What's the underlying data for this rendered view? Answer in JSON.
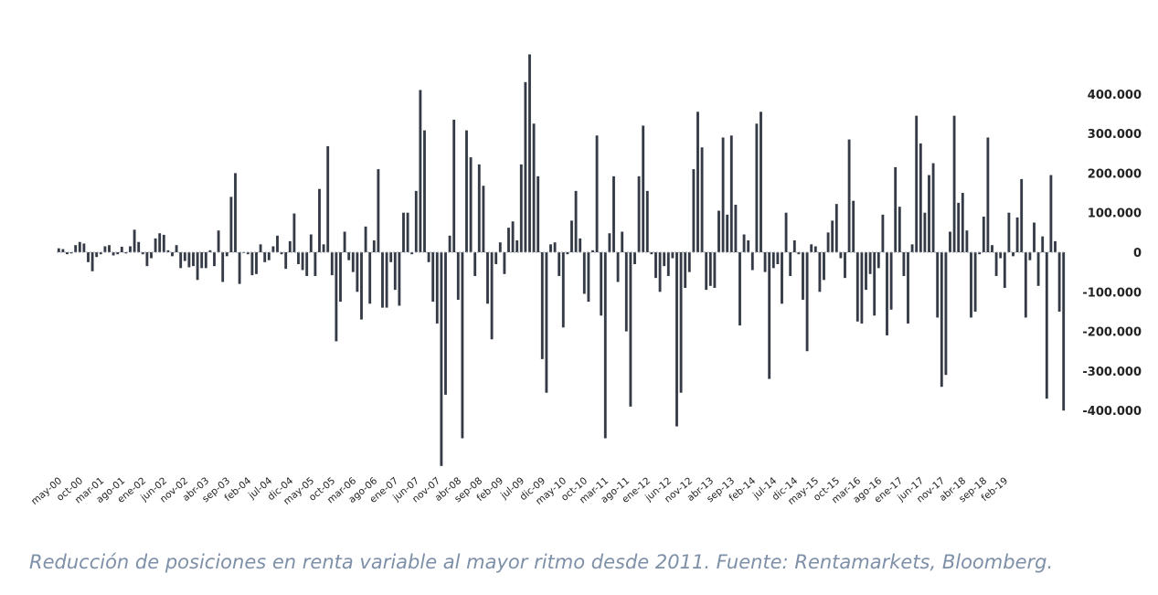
{
  "chart_data": {
    "type": "bar",
    "title": "",
    "xlabel": "",
    "ylabel": "",
    "ylim": [
      -550000,
      500000
    ],
    "yticks": [
      400000,
      300000,
      200000,
      100000,
      0,
      -100000,
      -200000,
      -300000,
      -400000
    ],
    "ytick_labels": [
      "400.000",
      "300.000",
      "200.000",
      "100.000",
      "0",
      "-100.000",
      "-200.000",
      "-300.000",
      "-400.000"
    ],
    "x_start": "2000-05",
    "x_tick_labels": [
      "may-00",
      "oct-00",
      "mar-01",
      "ago-01",
      "ene-02",
      "jun-02",
      "nov-02",
      "abr-03",
      "sep-03",
      "feb-04",
      "jul-04",
      "dic-04",
      "may-05",
      "oct-05",
      "mar-06",
      "ago-06",
      "ene-07",
      "jun-07",
      "nov-07",
      "abr-08",
      "sep-08",
      "feb-09",
      "jul-09",
      "dic-09",
      "may-10",
      "oct-10",
      "mar-11",
      "ago-11",
      "ene-12",
      "jun-12",
      "nov-12",
      "abr-13",
      "sep-13",
      "feb-14",
      "jul-14",
      "dic-14",
      "may-15",
      "oct-15",
      "mar-16",
      "ago-16",
      "ene-17",
      "jun-17",
      "nov-17",
      "abr-18",
      "sep-18",
      "feb-19"
    ],
    "bar_color": "#353b46",
    "values": [
      10000,
      8000,
      -5000,
      -3000,
      18000,
      26000,
      22000,
      -25000,
      -48000,
      -12000,
      -5000,
      15000,
      18000,
      -8000,
      -5000,
      14000,
      -3000,
      15000,
      57000,
      26000,
      -5000,
      -35000,
      -15000,
      35000,
      48000,
      44000,
      5000,
      -10000,
      18000,
      -40000,
      -22000,
      -38000,
      -35000,
      -70000,
      -40000,
      -40000,
      5000,
      -35000,
      55000,
      -75000,
      -10000,
      140000,
      200000,
      -80000,
      -2000,
      -5000,
      -58000,
      -55000,
      20000,
      -25000,
      -20000,
      15000,
      42000,
      -5000,
      -42000,
      28000,
      98000,
      -30000,
      -45000,
      -60000,
      45000,
      -60000,
      160000,
      20000,
      268000,
      -58000,
      -225000,
      -125000,
      52000,
      -20000,
      -50000,
      -100000,
      -170000,
      65000,
      -130000,
      30000,
      210000,
      -140000,
      -140000,
      -25000,
      -95000,
      -135000,
      100000,
      100000,
      -5000,
      155000,
      410000,
      308000,
      -25000,
      -125000,
      -180000,
      -540000,
      -360000,
      42000,
      335000,
      -120000,
      -470000,
      308000,
      240000,
      -60000,
      222000,
      168000,
      -130000,
      -220000,
      -30000,
      25000,
      -55000,
      62000,
      78000,
      30000,
      222000,
      430000,
      500000,
      325000,
      192000,
      -270000,
      -355000,
      20000,
      25000,
      -60000,
      -190000,
      -5000,
      80000,
      155000,
      35000,
      -105000,
      -125000,
      5000,
      295000,
      -160000,
      -470000,
      48000,
      192000,
      -75000,
      52000,
      -200000,
      -390000,
      -30000,
      192000,
      320000,
      155000,
      -5000,
      -65000,
      -100000,
      -35000,
      -60000,
      -15000,
      -440000,
      -355000,
      -90000,
      -50000,
      210000,
      355000,
      265000,
      -95000,
      -85000,
      -90000,
      105000,
      290000,
      95000,
      295000,
      120000,
      -185000,
      45000,
      30000,
      -45000,
      325000,
      355000,
      -50000,
      -320000,
      -40000,
      -30000,
      -130000,
      100000,
      -60000,
      30000,
      -5000,
      -120000,
      -250000,
      20000,
      15000,
      -100000,
      -70000,
      50000,
      80000,
      122000,
      -15000,
      -65000,
      285000,
      130000,
      -175000,
      -180000,
      -95000,
      -55000,
      -160000,
      -40000,
      95000,
      -210000,
      -145000,
      215000,
      115000,
      -60000,
      -180000,
      20000,
      345000,
      275000,
      100000,
      195000,
      225000,
      -165000,
      -340000,
      -310000,
      52000,
      345000,
      125000,
      150000,
      55000,
      -165000,
      -150000,
      -5000,
      90000,
      290000,
      18000,
      -60000,
      -15000,
      -90000,
      100000,
      -10000,
      88000,
      185000,
      -165000,
      -20000,
      75000,
      -85000,
      40000,
      -370000,
      195000,
      28000,
      -150000,
      -400000
    ]
  },
  "caption": "Reducción de posiciones en renta variable al mayor ritmo desde 2011. Fuente: Rentamarkets, Bloomberg."
}
